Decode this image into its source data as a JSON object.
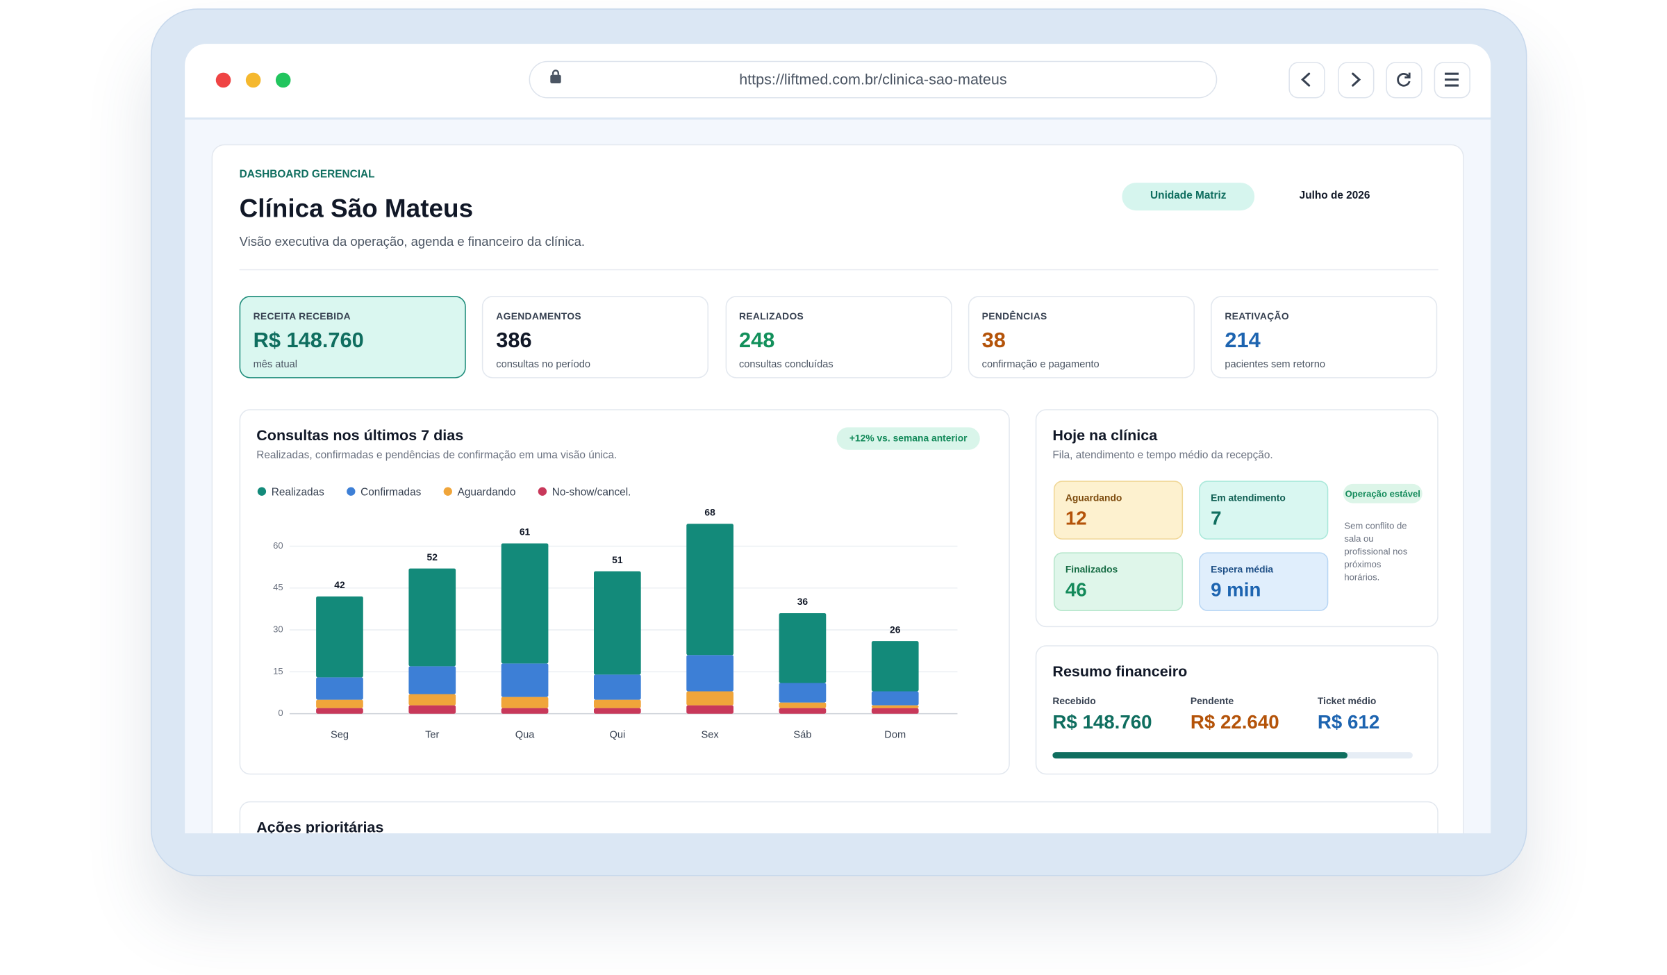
{
  "browser": {
    "url": "https://liftmed.com.br/clinica-sao-mateus"
  },
  "header": {
    "eyebrow": "DASHBOARD GERENCIAL",
    "title": "Clínica São Mateus",
    "subtitle": "Visão executiva da operação, agenda e financeiro da clínica.",
    "unit": "Unidade Matriz",
    "period": "Julho de 2026"
  },
  "kpis": [
    {
      "label": "RECEITA RECEBIDA",
      "value": "R$ 148.760",
      "note": "mês atual"
    },
    {
      "label": "AGENDAMENTOS",
      "value": 386,
      "note": "consultas no período"
    },
    {
      "label": "REALIZADOS",
      "value": 248,
      "note": "consultas concluídas"
    },
    {
      "label": "PENDÊNCIAS",
      "value": 38,
      "note": "confirmação e pagamento"
    },
    {
      "label": "REATIVAÇÃO",
      "value": 214,
      "note": "pacientes sem retorno"
    }
  ],
  "chart_data": {
    "type": "bar",
    "stacked": true,
    "title": "Consultas nos últimos 7 dias",
    "subtitle": "Realizadas, confirmadas e pendências de confirmação em uma visão única.",
    "badge": "+12% vs. semana anterior",
    "categories": [
      "Seg",
      "Ter",
      "Qua",
      "Qui",
      "Sex",
      "Sáb",
      "Dom"
    ],
    "series": [
      {
        "name": "Realizadas",
        "color": "#138a7a",
        "values": [
          29,
          35,
          43,
          37,
          47,
          25,
          18
        ]
      },
      {
        "name": "Confirmadas",
        "color": "#3d7fd6",
        "values": [
          8,
          10,
          12,
          9,
          13,
          7,
          5
        ]
      },
      {
        "name": "Aguardando",
        "color": "#f0a53a",
        "values": [
          3,
          4,
          4,
          3,
          5,
          2,
          1
        ]
      },
      {
        "name": "No-show/cancel.",
        "color": "#c8385a",
        "values": [
          2,
          3,
          2,
          2,
          3,
          2,
          2
        ]
      }
    ],
    "totals": [
      42,
      52,
      61,
      51,
      68,
      36,
      26
    ],
    "ylim": [
      0,
      75
    ],
    "yticks": [
      0,
      15,
      30,
      45,
      60
    ],
    "grid": true
  },
  "today": {
    "title": "Hoje na clínica",
    "subtitle": "Fila, atendimento e tempo médio da recepção.",
    "tiles": [
      {
        "label": "Aguardando",
        "value": 12
      },
      {
        "label": "Em atendimento",
        "value": 7
      },
      {
        "label": "Finalizados",
        "value": 46
      },
      {
        "label": "Espera média",
        "value": "9 min"
      }
    ],
    "status": "Operação estável",
    "note": "Sem conflito de sala ou profissional nos próximos horários."
  },
  "finance": {
    "title": "Resumo financeiro",
    "items": [
      {
        "label": "Recebido",
        "value": "R$ 148.760"
      },
      {
        "label": "Pendente",
        "value": "R$ 22.640"
      },
      {
        "label": "Ticket médio",
        "value": "R$ 612"
      }
    ]
  },
  "actions": {
    "title": "Ações prioritárias"
  }
}
